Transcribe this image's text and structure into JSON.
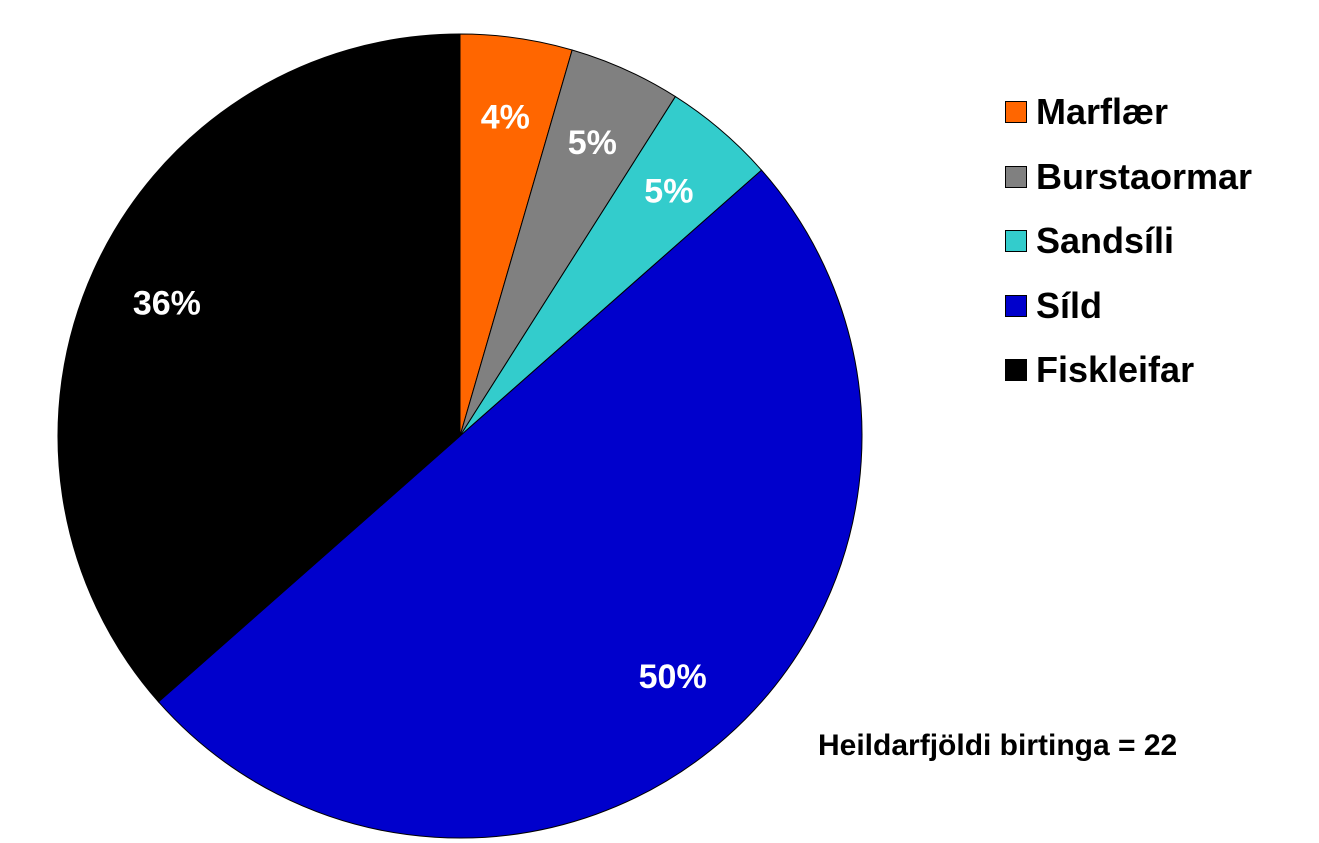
{
  "chart_data": {
    "type": "pie",
    "slices": [
      {
        "label": "Marflær",
        "percent_label": "4%",
        "value": 4.5,
        "color": "#FF6600"
      },
      {
        "label": "Burstaormar",
        "percent_label": "5%",
        "value": 4.5,
        "color": "#808080"
      },
      {
        "label": "Sandsíli",
        "percent_label": "5%",
        "value": 4.5,
        "color": "#33CCCC"
      },
      {
        "label": "Síld",
        "percent_label": "50%",
        "value": 50,
        "color": "#0000CC"
      },
      {
        "label": "Fiskleifar",
        "percent_label": "36%",
        "value": 36.5,
        "color": "#000000"
      }
    ],
    "legend_position": "right",
    "label_color": "#FFFFFF",
    "annotation": "Heildarfjöldi birtinga = 22"
  }
}
